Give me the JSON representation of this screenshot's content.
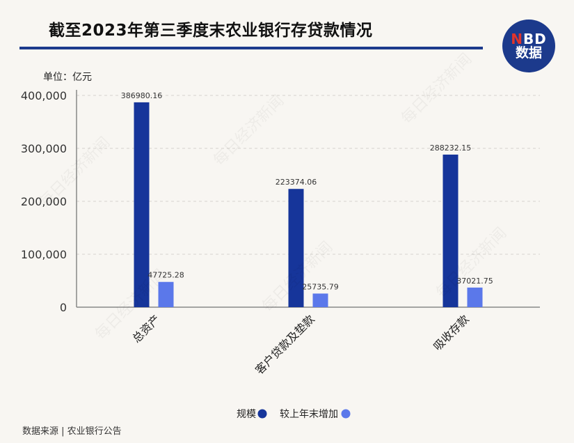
{
  "header": {
    "title": "截至2023年第三季度末农业银行存贷款情况",
    "logo_line1_prefix": "N",
    "logo_line1_rest": "BD",
    "logo_line2": "数据"
  },
  "unit_label": "单位：亿元",
  "source": "数据来源 | 农业银行公告",
  "watermark": "每日经济新闻",
  "colors": {
    "series1": "#16359a",
    "series2": "#5b78ea",
    "axis": "#888888",
    "grid": "#d6d3cd"
  },
  "chart_data": {
    "type": "bar",
    "categories": [
      "总资产",
      "客户贷款及垫款",
      "吸收存款"
    ],
    "series": [
      {
        "name": "规模",
        "values": [
          386980.16,
          223374.06,
          288232.15
        ],
        "labels": [
          "386980.16",
          "223374.06",
          "288232.15"
        ]
      },
      {
        "name": "较上年末增加",
        "values": [
          47725.28,
          25735.79,
          37021.75
        ],
        "labels": [
          "47725.28",
          "25735.79",
          "37021.75"
        ]
      }
    ],
    "yticks": [
      "0",
      "100,000",
      "200,000",
      "300,000",
      "400,000"
    ],
    "ylim": [
      0,
      400000
    ],
    "grid": true,
    "legend": "bottom-center"
  }
}
